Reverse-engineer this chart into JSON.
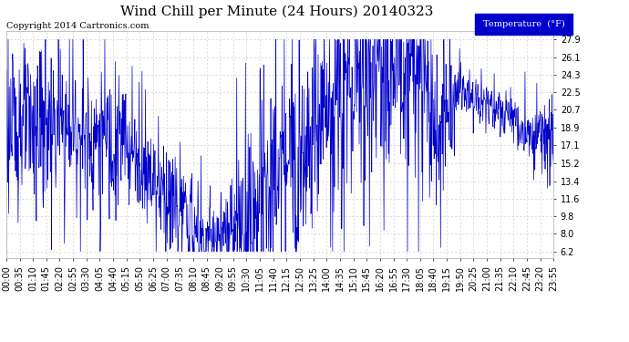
{
  "title": "Wind Chill per Minute (24 Hours) 20140323",
  "copyright_text": "Copyright 2014 Cartronics.com",
  "legend_label": "Temperature  (°F)",
  "background_color": "#ffffff",
  "plot_bg_color": "#ffffff",
  "line_color": "#0000cc",
  "legend_bg": "#0000cc",
  "legend_fg": "#ffffff",
  "yticks": [
    6.2,
    8.0,
    9.8,
    11.6,
    13.4,
    15.2,
    17.1,
    18.9,
    20.7,
    22.5,
    24.3,
    26.1,
    27.9
  ],
  "ylim": [
    5.5,
    28.8
  ],
  "grid_color": "#cccccc",
  "title_fontsize": 11,
  "tick_fontsize": 7,
  "copyright_fontsize": 7,
  "xtick_labels": [
    "00:00",
    "00:35",
    "01:10",
    "01:45",
    "02:20",
    "02:55",
    "03:30",
    "04:05",
    "04:40",
    "05:15",
    "05:50",
    "06:25",
    "07:00",
    "07:35",
    "08:10",
    "08:45",
    "09:20",
    "09:55",
    "10:30",
    "11:05",
    "11:40",
    "12:15",
    "12:50",
    "13:25",
    "14:00",
    "14:35",
    "15:10",
    "15:45",
    "16:20",
    "16:55",
    "17:30",
    "18:05",
    "18:40",
    "19:15",
    "19:50",
    "20:25",
    "21:00",
    "21:35",
    "22:10",
    "22:45",
    "23:20",
    "23:55"
  ],
  "num_points": 1440,
  "fig_width": 6.9,
  "fig_height": 3.75,
  "dpi": 100
}
